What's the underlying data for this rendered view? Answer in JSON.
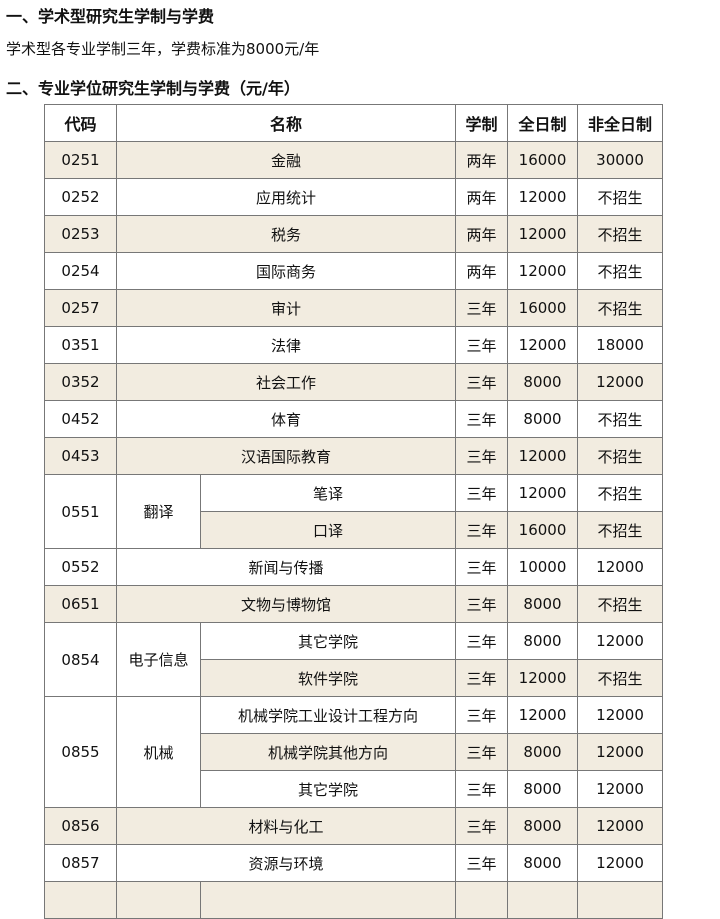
{
  "section1": {
    "title": "一、学术型研究生学制与学费",
    "text": "学术型各专业学制三年，学费标准为8000元/年"
  },
  "section2": {
    "title": "二、专业学位研究生学制与学费（元/年）"
  },
  "colors": {
    "shaded_row": "#f2ece0",
    "border": "#777777"
  },
  "table": {
    "headers": {
      "code": "代码",
      "name": "名称",
      "years": "学制",
      "full": "全日制",
      "part": "非全日制"
    },
    "rows": [
      {
        "code": "0251",
        "name": "金融",
        "sub": [
          {
            "name": null,
            "years": "两年",
            "full": "16000",
            "part": "30000",
            "shaded": true
          }
        ]
      },
      {
        "code": "0252",
        "name": "应用统计",
        "sub": [
          {
            "name": null,
            "years": "两年",
            "full": "12000",
            "part": "不招生",
            "shaded": false
          }
        ]
      },
      {
        "code": "0253",
        "name": "税务",
        "sub": [
          {
            "name": null,
            "years": "两年",
            "full": "12000",
            "part": "不招生",
            "shaded": true
          }
        ]
      },
      {
        "code": "0254",
        "name": "国际商务",
        "sub": [
          {
            "name": null,
            "years": "两年",
            "full": "12000",
            "part": "不招生",
            "shaded": false
          }
        ]
      },
      {
        "code": "0257",
        "name": "审计",
        "sub": [
          {
            "name": null,
            "years": "三年",
            "full": "16000",
            "part": "不招生",
            "shaded": true
          }
        ]
      },
      {
        "code": "0351",
        "name": "法律",
        "sub": [
          {
            "name": null,
            "years": "三年",
            "full": "12000",
            "part": "18000",
            "shaded": false
          }
        ]
      },
      {
        "code": "0352",
        "name": "社会工作",
        "sub": [
          {
            "name": null,
            "years": "三年",
            "full": "8000",
            "part": "12000",
            "shaded": true
          }
        ]
      },
      {
        "code": "0452",
        "name": "体育",
        "sub": [
          {
            "name": null,
            "years": "三年",
            "full": "8000",
            "part": "不招生",
            "shaded": false
          }
        ]
      },
      {
        "code": "0453",
        "name": "汉语国际教育",
        "sub": [
          {
            "name": null,
            "years": "三年",
            "full": "12000",
            "part": "不招生",
            "shaded": true
          }
        ]
      },
      {
        "code": "0551",
        "name": "翻译",
        "sub": [
          {
            "name": "笔译",
            "years": "三年",
            "full": "12000",
            "part": "不招生",
            "shaded": false
          },
          {
            "name": "口译",
            "years": "三年",
            "full": "16000",
            "part": "不招生",
            "shaded": true
          }
        ]
      },
      {
        "code": "0552",
        "name": "新闻与传播",
        "sub": [
          {
            "name": null,
            "years": "三年",
            "full": "10000",
            "part": "12000",
            "shaded": false
          }
        ]
      },
      {
        "code": "0651",
        "name": "文物与博物馆",
        "sub": [
          {
            "name": null,
            "years": "三年",
            "full": "8000",
            "part": "不招生",
            "shaded": true
          }
        ]
      },
      {
        "code": "0854",
        "name": "电子信息",
        "sub": [
          {
            "name": "其它学院",
            "years": "三年",
            "full": "8000",
            "part": "12000",
            "shaded": false
          },
          {
            "name": "软件学院",
            "years": "三年",
            "full": "12000",
            "part": "不招生",
            "shaded": true
          }
        ]
      },
      {
        "code": "0855",
        "name": "机械",
        "sub": [
          {
            "name": "机械学院工业设计工程方向",
            "years": "三年",
            "full": "12000",
            "part": "12000",
            "shaded": false
          },
          {
            "name": "机械学院其他方向",
            "years": "三年",
            "full": "8000",
            "part": "12000",
            "shaded": true
          },
          {
            "name": "其它学院",
            "years": "三年",
            "full": "8000",
            "part": "12000",
            "shaded": false
          }
        ]
      },
      {
        "code": "0856",
        "name": "材料与化工",
        "sub": [
          {
            "name": null,
            "years": "三年",
            "full": "8000",
            "part": "12000",
            "shaded": true
          }
        ]
      },
      {
        "code": "0857",
        "name": "资源与环境",
        "sub": [
          {
            "name": null,
            "years": "三年",
            "full": "8000",
            "part": "12000",
            "shaded": false
          }
        ]
      }
    ]
  }
}
